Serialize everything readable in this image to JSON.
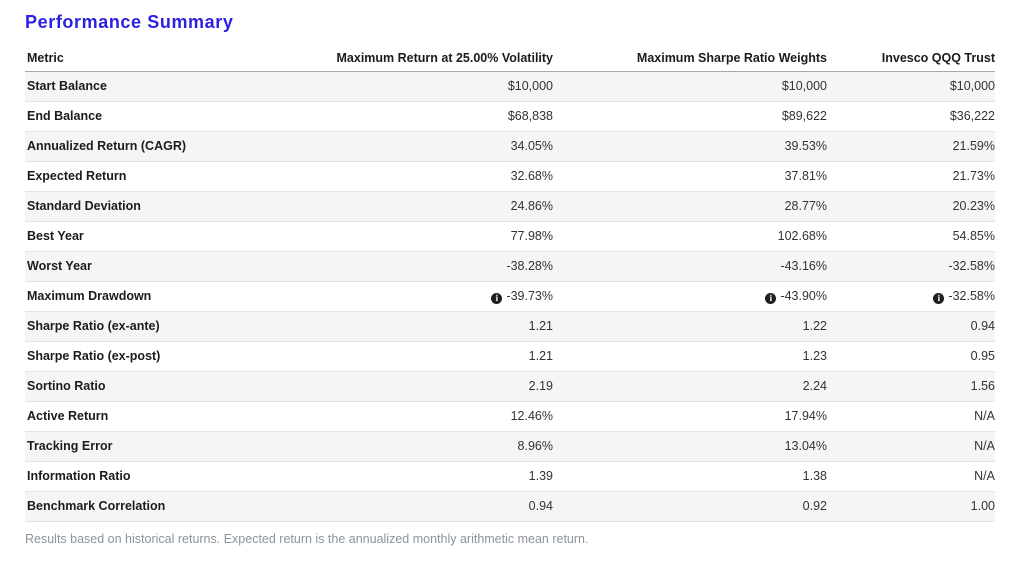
{
  "page": {
    "title": "Performance Summary",
    "title_color": "#2c1fe4",
    "footnote": "Results based on historical returns. Expected return is the annualized monthly arithmetic mean return."
  },
  "icons": {
    "info": "i"
  },
  "table": {
    "columns": [
      "Metric",
      "Maximum Return at 25.00% Volatility",
      "Maximum Sharpe Ratio Weights",
      "Invesco QQQ Trust"
    ],
    "rows": [
      {
        "metric": "Start Balance",
        "values": [
          "$10,000",
          "$10,000",
          "$10,000"
        ],
        "info": false
      },
      {
        "metric": "End Balance",
        "values": [
          "$68,838",
          "$89,622",
          "$36,222"
        ],
        "info": false
      },
      {
        "metric": "Annualized Return (CAGR)",
        "values": [
          "34.05%",
          "39.53%",
          "21.59%"
        ],
        "info": false
      },
      {
        "metric": "Expected Return",
        "values": [
          "32.68%",
          "37.81%",
          "21.73%"
        ],
        "info": false
      },
      {
        "metric": "Standard Deviation",
        "values": [
          "24.86%",
          "28.77%",
          "20.23%"
        ],
        "info": false
      },
      {
        "metric": "Best Year",
        "values": [
          "77.98%",
          "102.68%",
          "54.85%"
        ],
        "info": false
      },
      {
        "metric": "Worst Year",
        "values": [
          "-38.28%",
          "-43.16%",
          "-32.58%"
        ],
        "info": false
      },
      {
        "metric": "Maximum Drawdown",
        "values": [
          "-39.73%",
          "-43.90%",
          "-32.58%"
        ],
        "info": true
      },
      {
        "metric": "Sharpe Ratio (ex-ante)",
        "values": [
          "1.21",
          "1.22",
          "0.94"
        ],
        "info": false
      },
      {
        "metric": "Sharpe Ratio (ex-post)",
        "values": [
          "1.21",
          "1.23",
          "0.95"
        ],
        "info": false
      },
      {
        "metric": "Sortino Ratio",
        "values": [
          "2.19",
          "2.24",
          "1.56"
        ],
        "info": false
      },
      {
        "metric": "Active Return",
        "values": [
          "12.46%",
          "17.94%",
          "N/A"
        ],
        "info": false
      },
      {
        "metric": "Tracking Error",
        "values": [
          "8.96%",
          "13.04%",
          "N/A"
        ],
        "info": false
      },
      {
        "metric": "Information Ratio",
        "values": [
          "1.39",
          "1.38",
          "N/A"
        ],
        "info": false
      },
      {
        "metric": "Benchmark Correlation",
        "values": [
          "0.94",
          "0.92",
          "1.00"
        ],
        "info": false
      }
    ]
  }
}
